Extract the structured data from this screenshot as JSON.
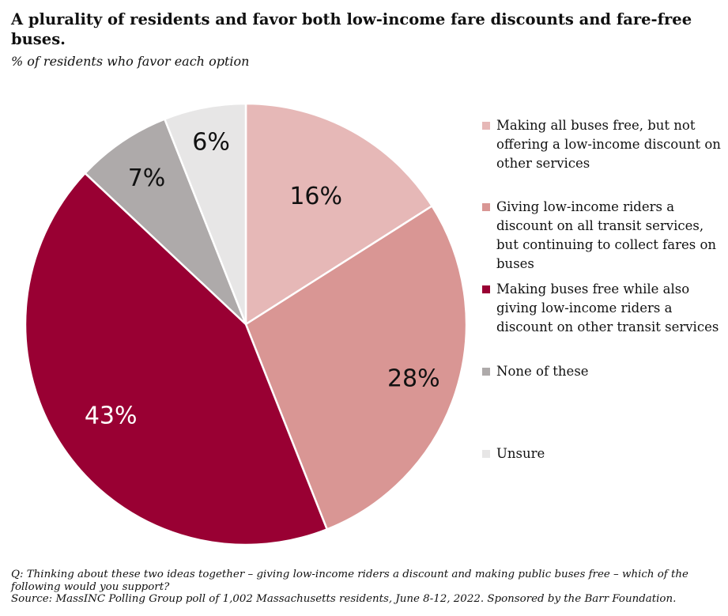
{
  "title": "A plurality of residents and favor both low-income fare discounts and fare-free buses.",
  "subtitle": "% of residents who favor each option",
  "chart_data": {
    "type": "pie",
    "title": "A plurality of residents and favor both low-income fare discounts and fare-free buses.",
    "subtitle": "% of residents who favor each option",
    "start": "12 o'clock, clockwise",
    "slices": [
      {
        "label": "Making all buses free, but not offering a low-income discount on other services",
        "value": 16,
        "display": "16%",
        "color": "#e6b8b7",
        "label_color": "#111111"
      },
      {
        "label": "Giving low-income riders a discount on all transit services, but continuing to collect fares on buses",
        "value": 28,
        "display": "28%",
        "color": "#d99694",
        "label_color": "#111111"
      },
      {
        "label": "Making buses free while also giving low-income riders a discount on other transit services",
        "value": 43,
        "display": "43%",
        "color": "#990033",
        "label_color": "#ffffff"
      },
      {
        "label": "None of these",
        "value": 7,
        "display": "7%",
        "color": "#aeaaaa",
        "label_color": "#111111"
      },
      {
        "label": "Unsure",
        "value": 6,
        "display": "6%",
        "color": "#e7e6e6",
        "label_color": "#111111"
      }
    ]
  },
  "legend": {
    "items": [
      {
        "label": "Making all buses free, but not offering a low-income discount on other services",
        "color": "#e6b8b7"
      },
      {
        "label": "Giving low-income riders a discount on all transit services, but continuing to collect fares on buses",
        "color": "#d99694"
      },
      {
        "label": "Making buses free while also giving low-income riders a discount on other transit services",
        "color": "#990033"
      },
      {
        "label": "None of these",
        "color": "#aeaaaa"
      },
      {
        "label": "Unsure",
        "color": "#e7e6e6"
      }
    ]
  },
  "footnote": {
    "question": "Q: Thinking about these two ideas together – giving low-income riders a discount and making public buses free – which of the following would you support?",
    "source": "Source: MassINC Polling Group poll of 1,002 Massachusetts residents, June 8-12, 2022. Sponsored by the Barr Foundation."
  }
}
